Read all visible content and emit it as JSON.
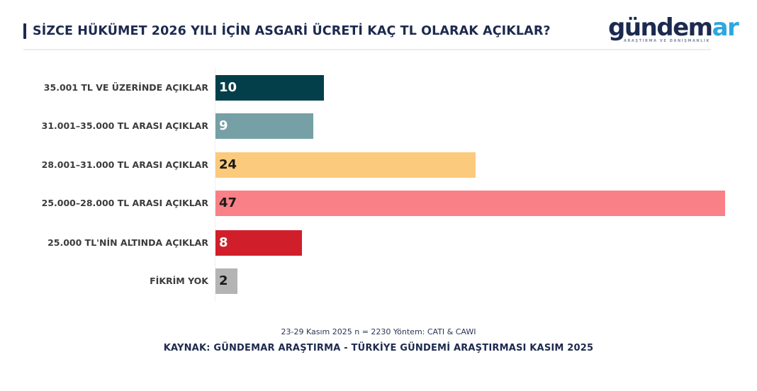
{
  "header": {
    "title": "SİZCE HÜKÜMET 2026 YILI İÇİN ASGARİ ÜCRETİ KAÇ TL OLARAK AÇIKLAR?",
    "logo": {
      "main": "gündem",
      "accent": "ar",
      "subtitle": "ARAŞTIRMA VE DANIŞMANLIK"
    }
  },
  "colors": {
    "title": "#1d2a4f",
    "logo_accent": "#2aa8e0"
  },
  "rows": [
    {
      "label": "35.001 TL VE ÜZERİNDE AÇIKLAR",
      "value": "10",
      "color": "#033e4b",
      "text_color": "#ffffff"
    },
    {
      "label": "31.001–35.000 TL ARASI AÇIKLAR",
      "value": "9",
      "color": "#76a0a5",
      "text_color": "#ffffff"
    },
    {
      "label": "28.001–31.000 TL ARASI AÇIKLAR",
      "value": "24",
      "color": "#fcca7c",
      "text_color": "#1a1a1a"
    },
    {
      "label": "25.000–28.000 TL ARASI AÇIKLAR",
      "value": "47",
      "color": "#f98087",
      "text_color": "#1a1a1a"
    },
    {
      "label": "25.000 TL'NİN ALTINDA AÇIKLAR",
      "value": "8",
      "color": "#d01f2b",
      "text_color": "#ffffff"
    },
    {
      "label": "FİKRİM YOK",
      "value": "2",
      "color": "#b4b4b4",
      "text_color": "#1a1a1a"
    }
  ],
  "footer": {
    "meta": "23-29 Kasım 2025 n = 2230 Yöntem: CATI & CAWI",
    "source": "KAYNAK: GÜNDEMAR ARAŞTIRMA - TÜRKİYE GÜNDEMİ ARAŞTIRMASI KASIM 2025"
  },
  "chart_data": {
    "type": "bar",
    "orientation": "horizontal",
    "title": "SİZCE HÜKÜMET 2026 YILI İÇİN ASGARİ ÜCRETİ KAÇ TL OLARAK AÇIKLAR?",
    "categories": [
      "35.001 TL VE ÜZERİNDE AÇIKLAR",
      "31.001–35.000 TL ARASI AÇIKLAR",
      "28.001–31.000 TL ARASI AÇIKLAR",
      "25.000–28.000 TL ARASI AÇIKLAR",
      "25.000 TL'NİN ALTINDA AÇIKLAR",
      "FİKRİM YOK"
    ],
    "values": [
      10,
      9,
      24,
      47,
      8,
      2
    ],
    "colors": [
      "#033e4b",
      "#76a0a5",
      "#fcca7c",
      "#f98087",
      "#d01f2b",
      "#b4b4b4"
    ],
    "xlabel": "",
    "ylabel": "",
    "xlim": [
      0,
      47
    ],
    "grid": false,
    "legend": null,
    "data_labels": true,
    "annotations": [
      "23-29 Kasım 2025 n = 2230 Yöntem: CATI & CAWI",
      "KAYNAK: GÜNDEMAR ARAŞTIRMA - TÜRKİYE GÜNDEMİ ARAŞTIRMASI KASIM 2025"
    ]
  }
}
